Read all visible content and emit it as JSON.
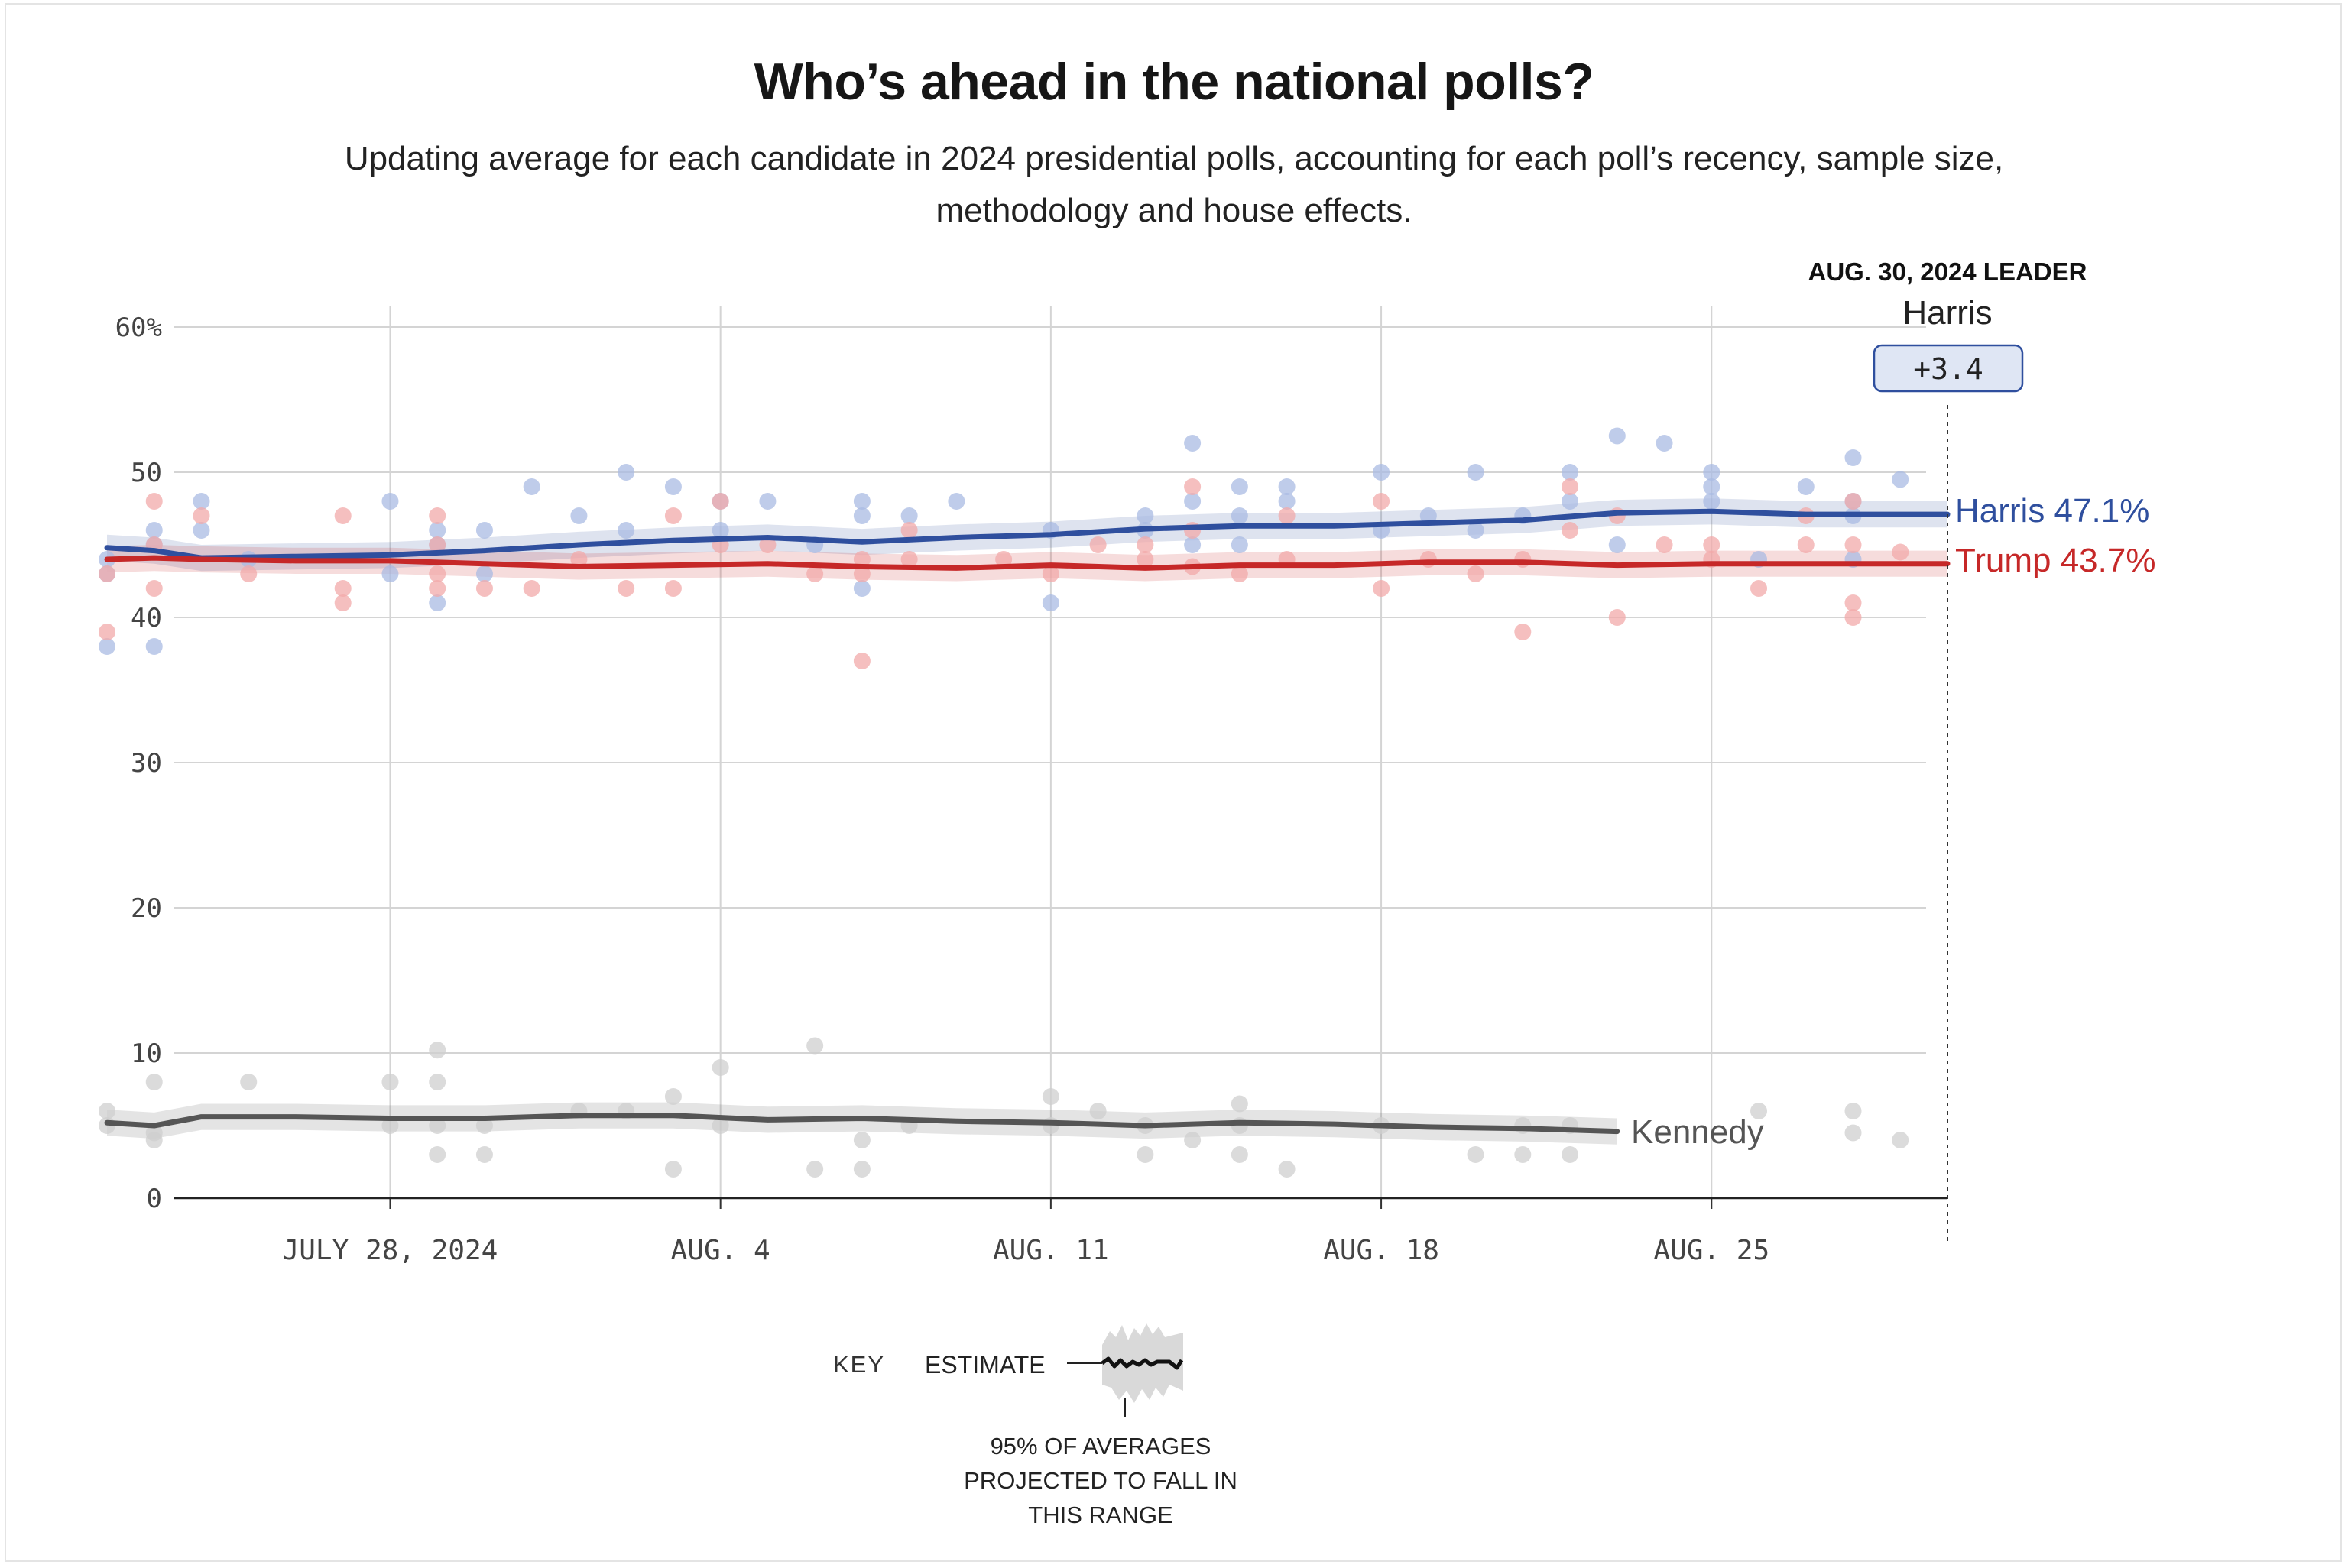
{
  "chart_data": {
    "type": "line",
    "title": "Who’s ahead in the national polls?",
    "subtitle": "Updating average for each candidate in 2024 presidential polls, accounting for each poll’s recency, sample size, methodology and house effects.",
    "x_start": "2024-07-22",
    "x_end": "2024-08-30",
    "ylim": [
      0,
      60
    ],
    "y_ticks": [
      0,
      10,
      20,
      30,
      40,
      50,
      60
    ],
    "y_tick_labels": [
      "0",
      "10",
      "20",
      "30",
      "40",
      "50",
      "60%"
    ],
    "x_ticks": [
      "2024-07-28",
      "2024-08-04",
      "2024-08-11",
      "2024-08-18",
      "2024-08-25"
    ],
    "x_tick_labels": [
      "JULY 28, 2024",
      "AUG. 4",
      "AUG. 11",
      "AUG. 18",
      "AUG. 25"
    ],
    "grid": true,
    "leader": {
      "heading": "AUG. 30, 2024 LEADER",
      "name": "Harris",
      "margin": "+3.4"
    },
    "series": [
      {
        "name": "Harris",
        "end_label": "Harris 47.1%",
        "color": "#2f4f9e",
        "dot_color": "#a9bbe3",
        "band": 0.9,
        "x": [
          "2024-07-22",
          "2024-07-23",
          "2024-07-24",
          "2024-07-26",
          "2024-07-28",
          "2024-07-30",
          "2024-08-01",
          "2024-08-03",
          "2024-08-05",
          "2024-08-07",
          "2024-08-09",
          "2024-08-11",
          "2024-08-13",
          "2024-08-15",
          "2024-08-17",
          "2024-08-19",
          "2024-08-21",
          "2024-08-23",
          "2024-08-25",
          "2024-08-27",
          "2024-08-30"
        ],
        "y": [
          44.8,
          44.6,
          44.1,
          44.2,
          44.3,
          44.6,
          45.0,
          45.3,
          45.5,
          45.2,
          45.5,
          45.7,
          46.1,
          46.3,
          46.3,
          46.5,
          46.7,
          47.2,
          47.3,
          47.1,
          47.1
        ],
        "dots": [
          [
            "2024-07-22",
            44
          ],
          [
            "2024-07-22",
            43
          ],
          [
            "2024-07-22",
            38
          ],
          [
            "2024-07-23",
            46
          ],
          [
            "2024-07-23",
            45
          ],
          [
            "2024-07-23",
            38
          ],
          [
            "2024-07-24",
            48
          ],
          [
            "2024-07-24",
            46
          ],
          [
            "2024-07-25",
            44
          ],
          [
            "2024-07-28",
            48
          ],
          [
            "2024-07-28",
            43
          ],
          [
            "2024-07-29",
            46
          ],
          [
            "2024-07-29",
            45
          ],
          [
            "2024-07-29",
            41
          ],
          [
            "2024-07-30",
            46
          ],
          [
            "2024-07-30",
            43
          ],
          [
            "2024-07-31",
            49
          ],
          [
            "2024-08-01",
            47
          ],
          [
            "2024-08-02",
            50
          ],
          [
            "2024-08-02",
            46
          ],
          [
            "2024-08-03",
            49
          ],
          [
            "2024-08-04",
            48
          ],
          [
            "2024-08-04",
            46
          ],
          [
            "2024-08-05",
            48
          ],
          [
            "2024-08-06",
            45
          ],
          [
            "2024-08-07",
            48
          ],
          [
            "2024-08-07",
            47
          ],
          [
            "2024-08-07",
            42
          ],
          [
            "2024-08-08",
            47
          ],
          [
            "2024-08-09",
            48
          ],
          [
            "2024-08-11",
            46
          ],
          [
            "2024-08-11",
            41
          ],
          [
            "2024-08-13",
            47
          ],
          [
            "2024-08-13",
            46
          ],
          [
            "2024-08-14",
            52
          ],
          [
            "2024-08-14",
            48
          ],
          [
            "2024-08-14",
            45
          ],
          [
            "2024-08-15",
            49
          ],
          [
            "2024-08-15",
            47
          ],
          [
            "2024-08-15",
            45
          ],
          [
            "2024-08-16",
            49
          ],
          [
            "2024-08-16",
            48
          ],
          [
            "2024-08-18",
            50
          ],
          [
            "2024-08-18",
            46
          ],
          [
            "2024-08-19",
            47
          ],
          [
            "2024-08-20",
            50
          ],
          [
            "2024-08-20",
            46
          ],
          [
            "2024-08-21",
            47
          ],
          [
            "2024-08-22",
            50
          ],
          [
            "2024-08-22",
            48
          ],
          [
            "2024-08-23",
            52.5
          ],
          [
            "2024-08-23",
            45
          ],
          [
            "2024-08-24",
            52
          ],
          [
            "2024-08-25",
            50
          ],
          [
            "2024-08-25",
            49
          ],
          [
            "2024-08-25",
            48
          ],
          [
            "2024-08-26",
            44
          ],
          [
            "2024-08-27",
            49
          ],
          [
            "2024-08-28",
            51
          ],
          [
            "2024-08-28",
            48
          ],
          [
            "2024-08-28",
            47
          ],
          [
            "2024-08-28",
            44
          ],
          [
            "2024-08-29",
            49.5
          ]
        ]
      },
      {
        "name": "Trump",
        "end_label": "Trump 43.7%",
        "color": "#c62828",
        "dot_color": "#f1a9a9",
        "band": 0.9,
        "x": [
          "2024-07-22",
          "2024-07-23",
          "2024-07-24",
          "2024-07-26",
          "2024-07-28",
          "2024-07-30",
          "2024-08-01",
          "2024-08-03",
          "2024-08-05",
          "2024-08-07",
          "2024-08-09",
          "2024-08-11",
          "2024-08-13",
          "2024-08-15",
          "2024-08-17",
          "2024-08-19",
          "2024-08-21",
          "2024-08-23",
          "2024-08-25",
          "2024-08-27",
          "2024-08-30"
        ],
        "y": [
          44.0,
          44.1,
          44.0,
          43.9,
          43.9,
          43.7,
          43.5,
          43.6,
          43.7,
          43.5,
          43.4,
          43.6,
          43.4,
          43.6,
          43.6,
          43.8,
          43.8,
          43.6,
          43.7,
          43.7,
          43.7
        ],
        "dots": [
          [
            "2024-07-22",
            43
          ],
          [
            "2024-07-22",
            39
          ],
          [
            "2024-07-23",
            48
          ],
          [
            "2024-07-23",
            45
          ],
          [
            "2024-07-23",
            42
          ],
          [
            "2024-07-24",
            47
          ],
          [
            "2024-07-25",
            43
          ],
          [
            "2024-07-27",
            47
          ],
          [
            "2024-07-27",
            42
          ],
          [
            "2024-07-27",
            41
          ],
          [
            "2024-07-29",
            47
          ],
          [
            "2024-07-29",
            45
          ],
          [
            "2024-07-29",
            43
          ],
          [
            "2024-07-29",
            42
          ],
          [
            "2024-07-30",
            42
          ],
          [
            "2024-07-31",
            42
          ],
          [
            "2024-08-01",
            44
          ],
          [
            "2024-08-02",
            42
          ],
          [
            "2024-08-03",
            47
          ],
          [
            "2024-08-03",
            42
          ],
          [
            "2024-08-04",
            48
          ],
          [
            "2024-08-04",
            45
          ],
          [
            "2024-08-05",
            45
          ],
          [
            "2024-08-06",
            43
          ],
          [
            "2024-08-07",
            44
          ],
          [
            "2024-08-07",
            43
          ],
          [
            "2024-08-07",
            37
          ],
          [
            "2024-08-08",
            46
          ],
          [
            "2024-08-08",
            44
          ],
          [
            "2024-08-10",
            44
          ],
          [
            "2024-08-11",
            43
          ],
          [
            "2024-08-12",
            45
          ],
          [
            "2024-08-13",
            45
          ],
          [
            "2024-08-13",
            44
          ],
          [
            "2024-08-14",
            49
          ],
          [
            "2024-08-14",
            46
          ],
          [
            "2024-08-14",
            43.5
          ],
          [
            "2024-08-15",
            43
          ],
          [
            "2024-08-16",
            47
          ],
          [
            "2024-08-16",
            44
          ],
          [
            "2024-08-18",
            48
          ],
          [
            "2024-08-18",
            42
          ],
          [
            "2024-08-19",
            44
          ],
          [
            "2024-08-20",
            43
          ],
          [
            "2024-08-21",
            44
          ],
          [
            "2024-08-21",
            39
          ],
          [
            "2024-08-22",
            49
          ],
          [
            "2024-08-22",
            46
          ],
          [
            "2024-08-23",
            47
          ],
          [
            "2024-08-23",
            40
          ],
          [
            "2024-08-24",
            45
          ],
          [
            "2024-08-25",
            45
          ],
          [
            "2024-08-25",
            44
          ],
          [
            "2024-08-26",
            42
          ],
          [
            "2024-08-27",
            47
          ],
          [
            "2024-08-27",
            45
          ],
          [
            "2024-08-28",
            48
          ],
          [
            "2024-08-28",
            45
          ],
          [
            "2024-08-28",
            41
          ],
          [
            "2024-08-28",
            40
          ],
          [
            "2024-08-29",
            44.5
          ]
        ]
      },
      {
        "name": "Kennedy",
        "end_label": "Kennedy",
        "color": "#555555",
        "dot_color": "#cfcfcf",
        "band": 0.9,
        "x": [
          "2024-07-22",
          "2024-07-23",
          "2024-07-24",
          "2024-07-26",
          "2024-07-28",
          "2024-07-30",
          "2024-08-01",
          "2024-08-03",
          "2024-08-05",
          "2024-08-07",
          "2024-08-09",
          "2024-08-11",
          "2024-08-13",
          "2024-08-15",
          "2024-08-17",
          "2024-08-19",
          "2024-08-21",
          "2024-08-23"
        ],
        "y": [
          5.2,
          5.0,
          5.6,
          5.6,
          5.5,
          5.5,
          5.7,
          5.7,
          5.4,
          5.5,
          5.3,
          5.2,
          5.0,
          5.2,
          5.1,
          4.9,
          4.8,
          4.6
        ],
        "dots": [
          [
            "2024-07-22",
            6
          ],
          [
            "2024-07-22",
            5
          ],
          [
            "2024-07-23",
            8
          ],
          [
            "2024-07-23",
            4.5
          ],
          [
            "2024-07-23",
            4
          ],
          [
            "2024-07-25",
            8
          ],
          [
            "2024-07-28",
            8
          ],
          [
            "2024-07-28",
            5
          ],
          [
            "2024-07-29",
            10.2
          ],
          [
            "2024-07-29",
            8
          ],
          [
            "2024-07-29",
            5
          ],
          [
            "2024-07-29",
            3
          ],
          [
            "2024-07-30",
            5
          ],
          [
            "2024-07-30",
            3
          ],
          [
            "2024-08-01",
            6
          ],
          [
            "2024-08-02",
            6
          ],
          [
            "2024-08-03",
            7
          ],
          [
            "2024-08-03",
            2
          ],
          [
            "2024-08-04",
            9
          ],
          [
            "2024-08-04",
            5
          ],
          [
            "2024-08-06",
            10.5
          ],
          [
            "2024-08-06",
            2
          ],
          [
            "2024-08-07",
            4
          ],
          [
            "2024-08-07",
            2
          ],
          [
            "2024-08-08",
            5
          ],
          [
            "2024-08-11",
            7
          ],
          [
            "2024-08-11",
            5
          ],
          [
            "2024-08-12",
            6
          ],
          [
            "2024-08-13",
            5
          ],
          [
            "2024-08-13",
            3
          ],
          [
            "2024-08-14",
            4
          ],
          [
            "2024-08-15",
            6.5
          ],
          [
            "2024-08-15",
            5
          ],
          [
            "2024-08-15",
            3
          ],
          [
            "2024-08-16",
            2
          ],
          [
            "2024-08-18",
            5
          ],
          [
            "2024-08-20",
            3
          ],
          [
            "2024-08-21",
            5
          ],
          [
            "2024-08-21",
            3
          ],
          [
            "2024-08-22",
            5
          ],
          [
            "2024-08-22",
            3
          ],
          [
            "2024-08-26",
            6
          ],
          [
            "2024-08-28",
            6
          ],
          [
            "2024-08-28",
            4.5
          ],
          [
            "2024-08-29",
            4
          ]
        ]
      }
    ]
  },
  "key": {
    "label": "KEY",
    "estimate": "ESTIMATE",
    "range_line1": "95% OF AVERAGES",
    "range_line2": "PROJECTED TO FALL IN",
    "range_line3": "THIS RANGE"
  }
}
